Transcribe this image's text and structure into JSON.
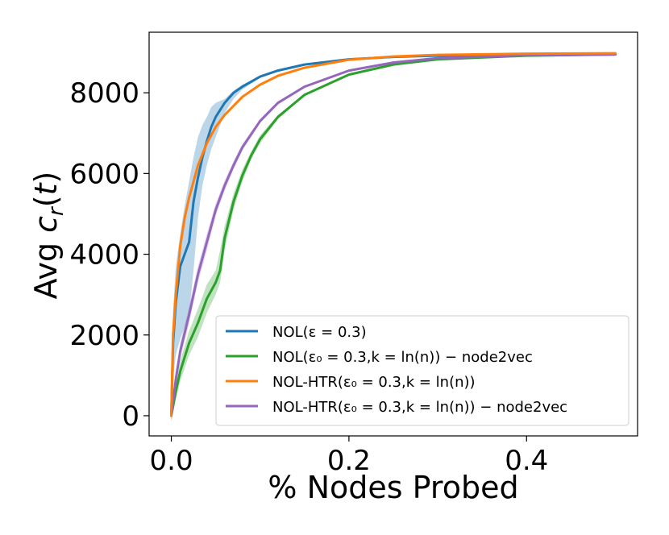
{
  "chart_data": {
    "type": "line",
    "xlabel": "% Nodes Probed",
    "ylabel": "Avg c_r(t)",
    "xlim": [
      -0.025,
      0.525
    ],
    "ylim": [
      -500,
      9500
    ],
    "xticks": [
      0.0,
      0.2,
      0.4
    ],
    "xtick_labels": [
      "0.0",
      "0.2",
      "0.4"
    ],
    "yticks": [
      0,
      2000,
      4000,
      6000,
      8000
    ],
    "ytick_labels": [
      "0",
      "2000",
      "4000",
      "6000",
      "8000"
    ],
    "grid": false,
    "legend_position": "lower-right",
    "series": [
      {
        "name": "NOL(ε = 0.3)",
        "color": "#1f77b4",
        "x": [
          0.0,
          0.002,
          0.005,
          0.01,
          0.015,
          0.02,
          0.025,
          0.03,
          0.035,
          0.04,
          0.045,
          0.05,
          0.06,
          0.07,
          0.08,
          0.1,
          0.12,
          0.15,
          0.2,
          0.25,
          0.3,
          0.4,
          0.5
        ],
        "y": [
          0,
          1800,
          2800,
          3700,
          4000,
          4300,
          5300,
          5900,
          6400,
          6800,
          7150,
          7400,
          7750,
          8000,
          8150,
          8400,
          8550,
          8700,
          8830,
          8890,
          8920,
          8950,
          8960
        ],
        "band_upper": [
          150,
          2600,
          3700,
          4500,
          5200,
          5800,
          6400,
          6900,
          7200,
          7400,
          7650,
          7750,
          7850,
          8050,
          8200,
          8420,
          8560,
          8710,
          8840,
          8895,
          8925,
          8952,
          8962
        ],
        "band_lower": [
          -100,
          900,
          1500,
          1900,
          2200,
          2500,
          3600,
          4900,
          5700,
          6200,
          6600,
          6900,
          7500,
          7850,
          8080,
          8370,
          8540,
          8690,
          8820,
          8885,
          8915,
          8948,
          8958
        ]
      },
      {
        "name": "NOL(ε₀ = 0.3,k = ln(n)) − node2vec",
        "color": "#2ca02c",
        "x": [
          0.0,
          0.005,
          0.01,
          0.02,
          0.03,
          0.04,
          0.05,
          0.055,
          0.06,
          0.07,
          0.08,
          0.09,
          0.1,
          0.12,
          0.15,
          0.2,
          0.25,
          0.3,
          0.4,
          0.5
        ],
        "y": [
          0,
          600,
          1100,
          1800,
          2300,
          2900,
          3300,
          3600,
          4400,
          5300,
          5950,
          6450,
          6850,
          7400,
          7950,
          8450,
          8700,
          8830,
          8920,
          8950
        ],
        "band_upper": [
          100,
          800,
          1350,
          2100,
          2650,
          3250,
          3600,
          4100,
          4700,
          5500,
          6100,
          6550,
          6950,
          7450,
          7980,
          8470,
          8710,
          8840,
          8925,
          8955
        ],
        "band_lower": [
          -150,
          400,
          850,
          1500,
          1950,
          2550,
          3000,
          3300,
          4100,
          5100,
          5800,
          6350,
          6750,
          7350,
          7920,
          8430,
          8690,
          8820,
          8915,
          8945
        ]
      },
      {
        "name": "NOL-HTR(ε₀ = 0.3,k = ln(n))",
        "color": "#ff7f0e",
        "x": [
          0.0,
          0.002,
          0.005,
          0.01,
          0.015,
          0.02,
          0.03,
          0.04,
          0.05,
          0.06,
          0.08,
          0.1,
          0.12,
          0.15,
          0.2,
          0.25,
          0.3,
          0.4,
          0.5
        ],
        "y": [
          0,
          2000,
          3000,
          4200,
          4900,
          5400,
          6200,
          6750,
          7150,
          7450,
          7900,
          8200,
          8420,
          8620,
          8820,
          8900,
          8940,
          8970,
          8980
        ],
        "band_upper": [
          60,
          2080,
          3080,
          4280,
          4970,
          5460,
          6250,
          6790,
          7180,
          7480,
          7920,
          8215,
          8430,
          8630,
          8825,
          8905,
          8945,
          8972,
          8982
        ],
        "band_lower": [
          -60,
          1920,
          2920,
          4120,
          4830,
          5340,
          6150,
          6710,
          7120,
          7420,
          7880,
          8185,
          8410,
          8610,
          8815,
          8895,
          8935,
          8968,
          8978
        ]
      },
      {
        "name": "NOL-HTR(ε₀ = 0.3,k = ln(n)) − node2vec",
        "color": "#9467bd",
        "x": [
          0.0,
          0.005,
          0.01,
          0.02,
          0.03,
          0.04,
          0.05,
          0.06,
          0.07,
          0.08,
          0.1,
          0.12,
          0.15,
          0.2,
          0.25,
          0.3,
          0.4,
          0.5
        ],
        "y": [
          0,
          900,
          1600,
          2500,
          3500,
          4300,
          5100,
          5700,
          6200,
          6650,
          7300,
          7750,
          8150,
          8550,
          8750,
          8860,
          8930,
          8950
        ],
        "band_upper": [
          100,
          1050,
          1800,
          2700,
          3700,
          4500,
          5250,
          5820,
          6300,
          6730,
          7350,
          7790,
          8180,
          8570,
          8760,
          8868,
          8935,
          8955
        ],
        "band_lower": [
          -120,
          750,
          1400,
          2300,
          3300,
          4100,
          4950,
          5580,
          6100,
          6570,
          7250,
          7710,
          8120,
          8530,
          8740,
          8852,
          8925,
          8945
        ]
      }
    ]
  },
  "legend": {
    "entries": [
      {
        "label": "NOL(ε = 0.3)",
        "color": "#1f77b4"
      },
      {
        "label": "NOL(ε₀ = 0.3,k = ln(n)) − node2vec",
        "color": "#2ca02c"
      },
      {
        "label": "NOL-HTR(ε₀ = 0.3,k = ln(n))",
        "color": "#ff7f0e"
      },
      {
        "label": "NOL-HTR(ε₀ = 0.3,k = ln(n)) − node2vec",
        "color": "#9467bd"
      }
    ]
  }
}
